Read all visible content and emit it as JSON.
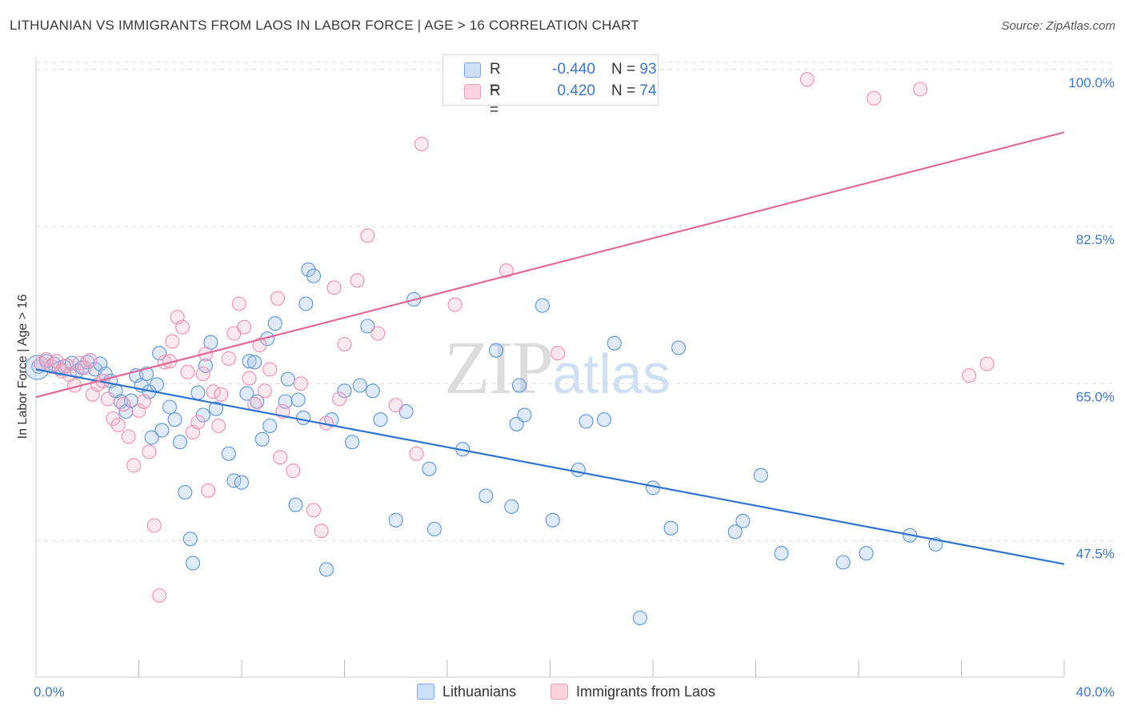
{
  "title": "LITHUANIAN VS IMMIGRANTS FROM LAOS IN LABOR FORCE | AGE > 16 CORRELATION CHART",
  "source": "Source: ZipAtlas.com",
  "watermark": {
    "zip": "ZIP",
    "atlas": "atlas"
  },
  "legend_top": {
    "rows": [
      {
        "r_label": "R =",
        "r_value": "-0.440",
        "n_label": "N =",
        "n_value": "93",
        "color": "#a9c8ef"
      },
      {
        "r_label": "R =",
        "r_value": "0.420",
        "n_label": "N =",
        "n_value": "74",
        "color": "#f6b6c9"
      }
    ]
  },
  "legend_bottom": [
    {
      "label": "Lithuanians",
      "color": "#a9c8ef"
    },
    {
      "label": "Immigrants from Laos",
      "color": "#f6b6c9"
    }
  ],
  "chart_data": {
    "type": "scatter",
    "ylabel": "In Labor Force | Age > 16",
    "xlim": [
      0,
      40
    ],
    "ylim": [
      32.3,
      101.5
    ],
    "x_tick_labels": [
      {
        "value": 0,
        "label": "0.0%"
      },
      {
        "value": 40,
        "label": "40.0%"
      }
    ],
    "x_minor_ticks": [
      4,
      8,
      12,
      16,
      20,
      24,
      28,
      32,
      36,
      40
    ],
    "y_ticks": [
      {
        "value": 100.0,
        "label": "100.0%"
      },
      {
        "value": 82.5,
        "label": "82.5%"
      },
      {
        "value": 65.0,
        "label": "65.0%"
      },
      {
        "value": 47.5,
        "label": "47.5%"
      }
    ],
    "grid": true,
    "colors": {
      "blue_stroke": "#5b95de",
      "blue_fill": "rgba(164,196,240,0.35)",
      "blue_line": "#2f74d0",
      "pink_stroke": "#ef8fae",
      "pink_fill": "rgba(246,182,201,0.3)",
      "pink_line": "#e06b97"
    },
    "series": [
      {
        "name": "Lithuanians",
        "trend": {
          "x": [
            0,
            40
          ],
          "y": [
            66.6,
            44.9
          ]
        },
        "points": [
          [
            0.1,
            66.9
          ],
          [
            0.4,
            67.5
          ],
          [
            0.7,
            67.2
          ],
          [
            0.9,
            66.7
          ],
          [
            1.1,
            66.9
          ],
          [
            1.4,
            67.3
          ],
          [
            1.6,
            66.4
          ],
          [
            1.8,
            66.8
          ],
          [
            2.0,
            67.4
          ],
          [
            2.3,
            66.6
          ],
          [
            2.5,
            67.2
          ],
          [
            2.7,
            66.1
          ],
          [
            2.9,
            65.3
          ],
          [
            3.1,
            64.2
          ],
          [
            3.3,
            63.0
          ],
          [
            3.5,
            61.9
          ],
          [
            3.7,
            63.1
          ],
          [
            3.9,
            65.9
          ],
          [
            4.1,
            64.8
          ],
          [
            4.3,
            66.1
          ],
          [
            4.4,
            64.1
          ],
          [
            4.5,
            59.0
          ],
          [
            4.7,
            64.9
          ],
          [
            4.8,
            68.4
          ],
          [
            4.9,
            59.8
          ],
          [
            5.2,
            62.4
          ],
          [
            5.4,
            61.0
          ],
          [
            5.6,
            58.5
          ],
          [
            5.8,
            52.9
          ],
          [
            6.0,
            47.7
          ],
          [
            6.1,
            45.0
          ],
          [
            6.3,
            64.0
          ],
          [
            6.5,
            61.5
          ],
          [
            6.6,
            67.0
          ],
          [
            6.8,
            69.6
          ],
          [
            7.0,
            62.2
          ],
          [
            7.5,
            57.2
          ],
          [
            7.7,
            54.2
          ],
          [
            8.0,
            54.0
          ],
          [
            8.2,
            63.9
          ],
          [
            8.3,
            67.5
          ],
          [
            8.5,
            67.4
          ],
          [
            8.6,
            63.0
          ],
          [
            8.8,
            58.8
          ],
          [
            9.0,
            70.0
          ],
          [
            9.1,
            60.3
          ],
          [
            9.3,
            71.7
          ],
          [
            9.7,
            63.0
          ],
          [
            9.8,
            65.5
          ],
          [
            10.1,
            51.5
          ],
          [
            10.2,
            63.2
          ],
          [
            10.4,
            61.2
          ],
          [
            10.5,
            73.9
          ],
          [
            10.6,
            77.7
          ],
          [
            10.8,
            77.0
          ],
          [
            11.3,
            44.3
          ],
          [
            11.5,
            61.0
          ],
          [
            12.0,
            64.2
          ],
          [
            12.3,
            58.5
          ],
          [
            12.6,
            64.8
          ],
          [
            12.9,
            71.4
          ],
          [
            13.1,
            64.2
          ],
          [
            13.4,
            61.0
          ],
          [
            14.0,
            49.8
          ],
          [
            14.4,
            61.9
          ],
          [
            14.7,
            74.4
          ],
          [
            15.3,
            55.5
          ],
          [
            15.5,
            48.8
          ],
          [
            16.6,
            57.7
          ],
          [
            17.5,
            52.5
          ],
          [
            17.9,
            68.7
          ],
          [
            18.5,
            51.3
          ],
          [
            18.7,
            60.5
          ],
          [
            18.8,
            64.8
          ],
          [
            19.0,
            61.5
          ],
          [
            19.7,
            73.7
          ],
          [
            20.1,
            49.8
          ],
          [
            21.1,
            55.4
          ],
          [
            21.4,
            60.8
          ],
          [
            22.1,
            61.0
          ],
          [
            22.5,
            69.5
          ],
          [
            23.5,
            38.9
          ],
          [
            24.0,
            53.4
          ],
          [
            24.7,
            48.9
          ],
          [
            25.0,
            69.0
          ],
          [
            27.2,
            48.5
          ],
          [
            27.5,
            49.7
          ],
          [
            28.2,
            54.8
          ],
          [
            29.0,
            46.1
          ],
          [
            31.4,
            45.1
          ],
          [
            32.3,
            46.1
          ],
          [
            34.0,
            48.1
          ],
          [
            35.0,
            47.1
          ]
        ]
      },
      {
        "name": "Immigrants from Laos",
        "trend": {
          "x": [
            0,
            40
          ],
          "y": [
            63.5,
            93.0
          ]
        },
        "points": [
          [
            0.2,
            67.2
          ],
          [
            0.4,
            67.7
          ],
          [
            0.6,
            66.9
          ],
          [
            0.8,
            67.5
          ],
          [
            1.0,
            66.4
          ],
          [
            1.2,
            67.0
          ],
          [
            1.3,
            66.0
          ],
          [
            1.5,
            64.8
          ],
          [
            1.7,
            67.3
          ],
          [
            1.9,
            66.8
          ],
          [
            2.1,
            67.6
          ],
          [
            2.2,
            63.8
          ],
          [
            2.4,
            64.9
          ],
          [
            2.6,
            65.3
          ],
          [
            2.8,
            63.3
          ],
          [
            3.0,
            61.1
          ],
          [
            3.2,
            60.4
          ],
          [
            3.4,
            62.7
          ],
          [
            3.6,
            59.1
          ],
          [
            3.8,
            55.9
          ],
          [
            4.0,
            62.0
          ],
          [
            4.2,
            63.0
          ],
          [
            4.4,
            57.4
          ],
          [
            4.6,
            49.2
          ],
          [
            4.8,
            41.4
          ],
          [
            5.0,
            67.4
          ],
          [
            5.2,
            67.5
          ],
          [
            5.3,
            69.7
          ],
          [
            5.5,
            72.4
          ],
          [
            5.7,
            71.3
          ],
          [
            5.9,
            66.3
          ],
          [
            6.1,
            59.6
          ],
          [
            6.3,
            60.7
          ],
          [
            6.5,
            66.1
          ],
          [
            6.6,
            68.3
          ],
          [
            6.7,
            53.1
          ],
          [
            6.9,
            64.1
          ],
          [
            7.1,
            60.3
          ],
          [
            7.2,
            63.8
          ],
          [
            7.5,
            67.8
          ],
          [
            7.7,
            70.6
          ],
          [
            7.9,
            73.9
          ],
          [
            8.1,
            71.3
          ],
          [
            8.3,
            65.6
          ],
          [
            8.5,
            62.7
          ],
          [
            8.7,
            69.3
          ],
          [
            8.9,
            64.2
          ],
          [
            9.1,
            66.6
          ],
          [
            9.4,
            74.5
          ],
          [
            9.5,
            56.8
          ],
          [
            9.6,
            61.9
          ],
          [
            10.0,
            55.3
          ],
          [
            10.3,
            65.0
          ],
          [
            10.8,
            50.9
          ],
          [
            11.1,
            48.6
          ],
          [
            11.3,
            60.6
          ],
          [
            11.6,
            75.7
          ],
          [
            11.8,
            63.3
          ],
          [
            12.0,
            69.4
          ],
          [
            12.5,
            76.5
          ],
          [
            12.9,
            81.5
          ],
          [
            13.3,
            70.6
          ],
          [
            14.0,
            62.6
          ],
          [
            14.8,
            57.2
          ],
          [
            15.0,
            91.7
          ],
          [
            16.3,
            73.8
          ],
          [
            18.3,
            77.6
          ],
          [
            20.3,
            68.4
          ],
          [
            23.5,
            97.1
          ],
          [
            30.0,
            98.9
          ],
          [
            32.6,
            96.8
          ],
          [
            34.4,
            97.8
          ],
          [
            36.3,
            65.9
          ],
          [
            37.0,
            67.2
          ]
        ]
      }
    ]
  }
}
